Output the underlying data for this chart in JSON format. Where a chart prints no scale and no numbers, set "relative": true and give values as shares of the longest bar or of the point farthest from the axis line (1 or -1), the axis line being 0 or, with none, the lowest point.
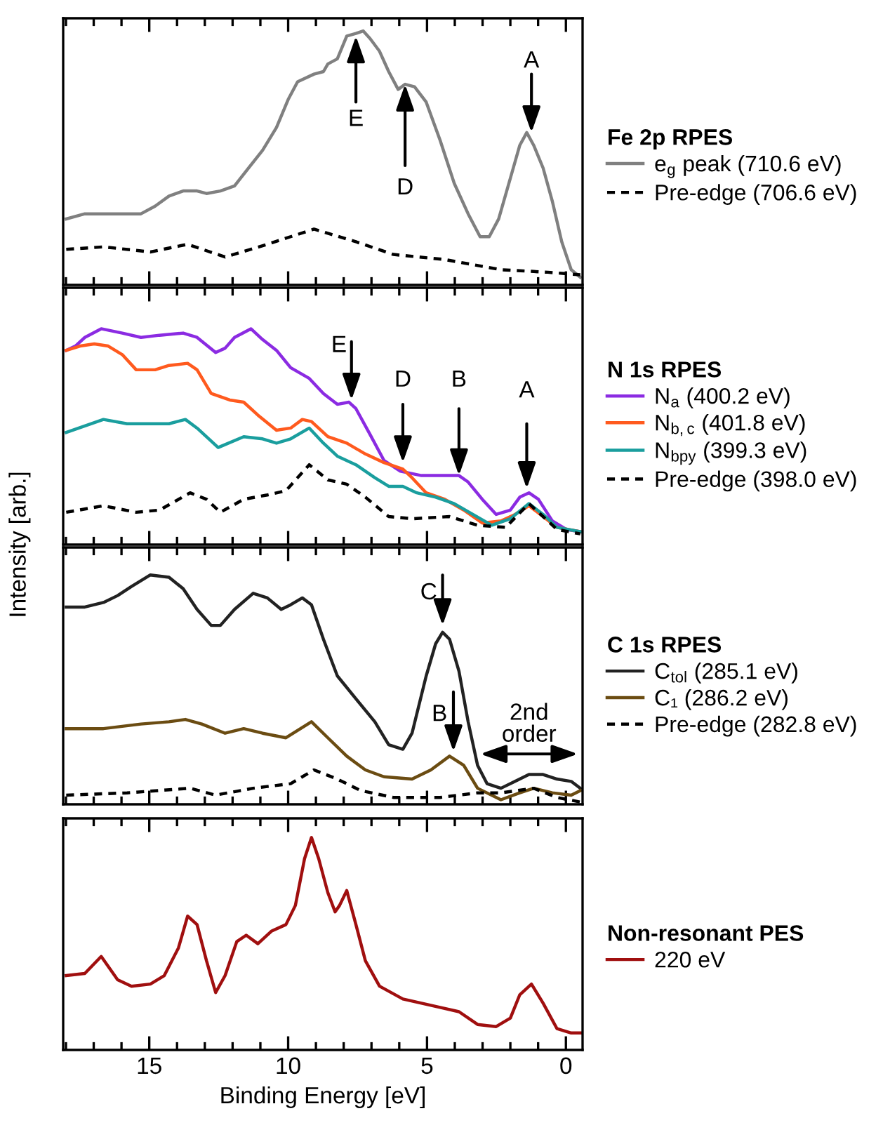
{
  "chart_data": [
    {
      "type": "line",
      "relative": true,
      "xlim": [
        18.1,
        -0.6
      ],
      "tick_labels": false,
      "legend": "right",
      "legend_title": "Fe 2p RPES",
      "grid": false,
      "marker": "none",
      "xticks": [
        {
          "value": 18,
          "label": null
        },
        {
          "value": 17,
          "label": null
        },
        {
          "value": 16,
          "label": null
        },
        {
          "value": 15,
          "label": null
        },
        {
          "value": 14,
          "label": null
        },
        {
          "value": 13,
          "label": null
        },
        {
          "value": 12,
          "label": null
        },
        {
          "value": 11,
          "label": null
        },
        {
          "value": 10,
          "label": null
        },
        {
          "value": 9,
          "label": null
        },
        {
          "value": 8,
          "label": null
        },
        {
          "value": 7,
          "label": null
        },
        {
          "value": 6,
          "label": null
        },
        {
          "value": 5,
          "label": null
        },
        {
          "value": 4,
          "label": null
        },
        {
          "value": 3,
          "label": null
        },
        {
          "value": 2,
          "label": null
        },
        {
          "value": 1,
          "label": null
        },
        {
          "value": 0,
          "label": null
        }
      ],
      "series": [
        {
          "name": "e$_{g}$ peak (710.6 eV)",
          "color": "#808080",
          "line_style": "solid",
          "x": [
            17.99,
            17.32,
            16.65,
            15.97,
            15.3,
            14.79,
            14.29,
            13.78,
            13.28,
            12.94,
            12.44,
            11.93,
            11.43,
            10.92,
            10.42,
            10.0,
            9.66,
            9.07,
            8.73,
            8.57,
            8.23,
            7.89,
            7.56,
            7.3,
            7.05,
            6.71,
            6.38,
            6.04,
            5.79,
            5.45,
            5.03,
            4.53,
            4.02,
            3.52,
            3.09,
            2.76,
            2.42,
            2.0,
            1.66,
            1.41,
            1.16,
            0.82,
            0.49,
            0.15,
            -0.19,
            -0.52
          ],
          "values": [
            0.26,
            0.28,
            0.28,
            0.28,
            0.28,
            0.31,
            0.35,
            0.37,
            0.37,
            0.36,
            0.37,
            0.39,
            0.46,
            0.53,
            0.62,
            0.73,
            0.8,
            0.83,
            0.84,
            0.87,
            0.89,
            0.98,
            0.99,
            1.0,
            0.97,
            0.92,
            0.84,
            0.77,
            0.79,
            0.78,
            0.72,
            0.57,
            0.4,
            0.28,
            0.19,
            0.19,
            0.26,
            0.42,
            0.55,
            0.6,
            0.55,
            0.46,
            0.33,
            0.17,
            0.06,
            0.03
          ]
        },
        {
          "name": "Pre-edge (706.6 eV)",
          "color": "#000000",
          "line_style": "dashed",
          "x": [
            17.99,
            16.65,
            14.96,
            13.62,
            12.27,
            10.75,
            9.07,
            7.56,
            6.21,
            4.36,
            2.34,
            0.65,
            -0.52
          ],
          "values": [
            0.14,
            0.15,
            0.13,
            0.16,
            0.11,
            0.16,
            0.22,
            0.17,
            0.12,
            0.1,
            0.06,
            0.05,
            0.04
          ]
        }
      ],
      "annotations": [
        {
          "text": "E",
          "x": 7.56,
          "y": 0.98
        },
        {
          "text": "D",
          "x": 5.79,
          "y": 0.79
        },
        {
          "text": "A",
          "x": 1.24,
          "y": 0.6
        }
      ]
    },
    {
      "type": "line",
      "relative": true,
      "xlim": [
        18.1,
        -0.6
      ],
      "tick_labels": false,
      "legend": "right",
      "legend_title": "N 1s RPES",
      "grid": false,
      "marker": "none",
      "ylabel": "Intensity [arb.]",
      "xticks": [
        {
          "value": 18,
          "label": null
        },
        {
          "value": 17,
          "label": null
        },
        {
          "value": 16,
          "label": null
        },
        {
          "value": 15,
          "label": null
        },
        {
          "value": 14,
          "label": null
        },
        {
          "value": 13,
          "label": null
        },
        {
          "value": 12,
          "label": null
        },
        {
          "value": 11,
          "label": null
        },
        {
          "value": 10,
          "label": null
        },
        {
          "value": 9,
          "label": null
        },
        {
          "value": 8,
          "label": null
        },
        {
          "value": 7,
          "label": null
        },
        {
          "value": 6,
          "label": null
        },
        {
          "value": 5,
          "label": null
        },
        {
          "value": 4,
          "label": null
        },
        {
          "value": 3,
          "label": null
        },
        {
          "value": 2,
          "label": null
        },
        {
          "value": 1,
          "label": null
        },
        {
          "value": 0,
          "label": null
        }
      ],
      "series": [
        {
          "name": "N$_{a}$ (400.2 eV)",
          "color": "#8b2be2",
          "line_style": "solid",
          "x": [
            17.99,
            17.66,
            17.32,
            16.73,
            15.97,
            15.3,
            14.63,
            13.78,
            13.28,
            12.61,
            12.27,
            11.93,
            11.34,
            10.92,
            10.42,
            9.91,
            9.24,
            8.73,
            8.23,
            7.81,
            7.56,
            7.05,
            6.55,
            5.96,
            5.2,
            4.36,
            3.85,
            3.52,
            3.01,
            2.51,
            2.0,
            1.66,
            1.33,
            0.99,
            0.49,
            -0.02,
            -0.52
          ],
          "values": [
            0.9,
            0.92,
            0.96,
            1.0,
            0.98,
            0.96,
            0.97,
            0.98,
            0.96,
            0.89,
            0.91,
            0.96,
            1.0,
            0.95,
            0.9,
            0.82,
            0.77,
            0.7,
            0.65,
            0.66,
            0.63,
            0.51,
            0.39,
            0.34,
            0.32,
            0.32,
            0.32,
            0.29,
            0.21,
            0.14,
            0.16,
            0.22,
            0.24,
            0.21,
            0.11,
            0.07,
            0.06
          ]
        },
        {
          "name": "N$_{b,c}$ (401.8 eV)",
          "color": "#ff5a1e",
          "line_style": "solid",
          "x": [
            17.99,
            17.49,
            16.98,
            16.48,
            15.97,
            15.47,
            14.79,
            14.29,
            13.62,
            13.28,
            12.77,
            12.1,
            11.6,
            11.09,
            10.42,
            9.91,
            9.49,
            9.16,
            8.57,
            7.89,
            7.22,
            6.55,
            5.87,
            5.54,
            5.03,
            4.36,
            3.68,
            3.01,
            2.34,
            1.83,
            1.33,
            0.82,
            0.32,
            -0.52
          ],
          "values": [
            0.9,
            0.92,
            0.93,
            0.92,
            0.88,
            0.81,
            0.81,
            0.83,
            0.84,
            0.81,
            0.7,
            0.67,
            0.66,
            0.6,
            0.53,
            0.54,
            0.58,
            0.57,
            0.5,
            0.47,
            0.42,
            0.38,
            0.35,
            0.31,
            0.24,
            0.21,
            0.16,
            0.1,
            0.11,
            0.14,
            0.18,
            0.13,
            0.08,
            0.06
          ]
        },
        {
          "name": "N$_{bpy}$ (399.3 eV)",
          "color": "#1a9e9e",
          "line_style": "solid",
          "x": [
            17.99,
            17.32,
            16.65,
            15.8,
            14.96,
            14.29,
            13.7,
            13.28,
            12.52,
            11.6,
            10.92,
            10.42,
            9.91,
            9.24,
            8.73,
            8.23,
            7.56,
            6.88,
            6.38,
            5.87,
            5.37,
            4.69,
            4.02,
            3.35,
            2.67,
            2.0,
            1.33,
            0.82,
            0.32,
            -0.52
          ],
          "values": [
            0.52,
            0.55,
            0.58,
            0.56,
            0.56,
            0.56,
            0.58,
            0.54,
            0.45,
            0.5,
            0.49,
            0.47,
            0.49,
            0.54,
            0.47,
            0.41,
            0.37,
            0.31,
            0.27,
            0.27,
            0.24,
            0.22,
            0.19,
            0.14,
            0.09,
            0.12,
            0.19,
            0.14,
            0.08,
            0.06
          ]
        },
        {
          "name": "Pre-edge (398.0 eV)",
          "color": "#000000",
          "line_style": "dashed",
          "x": [
            17.99,
            16.65,
            15.47,
            14.63,
            13.53,
            12.94,
            12.44,
            11.6,
            10.75,
            10.08,
            9.24,
            8.57,
            7.89,
            7.22,
            6.38,
            5.54,
            4.19,
            3.18,
            2.17,
            1.33,
            0.82,
            0.32,
            -0.52
          ],
          "values": [
            0.15,
            0.18,
            0.15,
            0.16,
            0.24,
            0.21,
            0.15,
            0.21,
            0.23,
            0.25,
            0.37,
            0.3,
            0.28,
            0.22,
            0.13,
            0.12,
            0.13,
            0.09,
            0.08,
            0.19,
            0.13,
            0.07,
            0.05
          ]
        }
      ],
      "annotations": [
        {
          "text": "E",
          "x": 7.72,
          "y": 0.67
        },
        {
          "text": "D",
          "x": 5.87,
          "y": 0.38
        },
        {
          "text": "B",
          "x": 3.85,
          "y": 0.32
        },
        {
          "text": "A",
          "x": 1.41,
          "y": 0.26
        }
      ]
    },
    {
      "type": "line",
      "relative": true,
      "xlim": [
        18.1,
        -0.6
      ],
      "tick_labels": false,
      "legend": "right",
      "legend_title": "C 1s RPES",
      "grid": false,
      "marker": "none",
      "xticks": [
        {
          "value": 18,
          "label": null
        },
        {
          "value": 17,
          "label": null
        },
        {
          "value": 16,
          "label": null
        },
        {
          "value": 15,
          "label": null
        },
        {
          "value": 14,
          "label": null
        },
        {
          "value": 13,
          "label": null
        },
        {
          "value": 12,
          "label": null
        },
        {
          "value": 11,
          "label": null
        },
        {
          "value": 10,
          "label": null
        },
        {
          "value": 9,
          "label": null
        },
        {
          "value": 8,
          "label": null
        },
        {
          "value": 7,
          "label": null
        },
        {
          "value": 6,
          "label": null
        },
        {
          "value": 5,
          "label": null
        },
        {
          "value": 4,
          "label": null
        },
        {
          "value": 3,
          "label": null
        },
        {
          "value": 2,
          "label": null
        },
        {
          "value": 1,
          "label": null
        },
        {
          "value": 0,
          "label": null
        }
      ],
      "series": [
        {
          "name": "C$_{tol}$ (285.1 eV)",
          "color": "#222222",
          "line_style": "solid",
          "x": [
            17.99,
            17.32,
            16.65,
            16.14,
            15.64,
            14.96,
            14.29,
            13.78,
            13.28,
            12.77,
            12.44,
            11.93,
            11.26,
            10.75,
            10.25,
            9.91,
            9.49,
            9.16,
            8.73,
            8.23,
            7.56,
            6.88,
            6.38,
            5.87,
            5.54,
            5.03,
            4.69,
            4.44,
            4.19,
            3.85,
            3.52,
            3.18,
            2.84,
            2.34,
            1.83,
            1.33,
            0.82,
            0.32,
            -0.19,
            -0.52
          ],
          "values": [
            0.86,
            0.86,
            0.88,
            0.91,
            0.95,
            1.0,
            0.99,
            0.94,
            0.85,
            0.78,
            0.78,
            0.85,
            0.92,
            0.9,
            0.85,
            0.87,
            0.9,
            0.87,
            0.72,
            0.56,
            0.46,
            0.36,
            0.26,
            0.24,
            0.31,
            0.56,
            0.7,
            0.75,
            0.72,
            0.58,
            0.36,
            0.17,
            0.09,
            0.07,
            0.1,
            0.13,
            0.13,
            0.11,
            0.1,
            0.07
          ]
        },
        {
          "name": "C₁ (286.2 eV)",
          "color": "#6b4c12",
          "line_style": "solid",
          "x": [
            17.99,
            16.65,
            15.3,
            14.29,
            13.7,
            13.11,
            12.27,
            11.6,
            10.92,
            10.08,
            9.16,
            8.57,
            7.89,
            7.22,
            6.55,
            5.54,
            4.86,
            4.19,
            3.68,
            3.18,
            2.34,
            1.66,
            1.16,
            0.49,
            -0.19,
            -0.52
          ],
          "values": [
            0.33,
            0.33,
            0.35,
            0.36,
            0.37,
            0.35,
            0.31,
            0.33,
            0.31,
            0.29,
            0.36,
            0.29,
            0.21,
            0.15,
            0.12,
            0.11,
            0.15,
            0.21,
            0.17,
            0.07,
            0.02,
            0.05,
            0.07,
            0.05,
            0.04,
            0.06
          ]
        },
        {
          "name": "Pre-edge (282.8 eV)",
          "color": "#000000",
          "line_style": "dashed",
          "x": [
            17.99,
            15.8,
            13.53,
            12.61,
            11.26,
            9.91,
            9.07,
            8.23,
            7.39,
            6.21,
            4.53,
            3.18,
            2.34,
            1.16,
            0.32,
            -0.52
          ],
          "values": [
            0.04,
            0.05,
            0.07,
            0.04,
            0.07,
            0.09,
            0.15,
            0.11,
            0.06,
            0.03,
            0.03,
            0.05,
            0.05,
            0.07,
            0.03,
            0.01
          ]
        }
      ],
      "annotations": [
        {
          "text": "C",
          "x": 4.44,
          "y": 0.78
        },
        {
          "text": "B",
          "x": 4.05,
          "y": 0.23
        },
        "2nd\norder"
      ]
    },
    {
      "type": "line",
      "relative": true,
      "xlim": [
        18.1,
        -0.6
      ],
      "tick_labels": "x",
      "legend": "right",
      "legend_title": "Non-resonant PES",
      "grid": false,
      "marker": "none",
      "xlabel": "Binding Energy [eV]",
      "xticks": [
        {
          "value": 18,
          "label": null
        },
        {
          "value": 17,
          "label": null
        },
        {
          "value": 16,
          "label": null
        },
        15,
        {
          "value": 14,
          "label": null
        },
        {
          "value": 13,
          "label": null
        },
        {
          "value": 12,
          "label": null
        },
        {
          "value": 11,
          "label": null
        },
        10,
        {
          "value": 9,
          "label": null
        },
        {
          "value": 8,
          "label": null
        },
        {
          "value": 7,
          "label": null
        },
        {
          "value": 6,
          "label": null
        },
        5,
        {
          "value": 4,
          "label": null
        },
        {
          "value": 3,
          "label": null
        },
        {
          "value": 2,
          "label": null
        },
        {
          "value": 1,
          "label": null
        },
        0
      ],
      "series": [
        {
          "name": "220 eV",
          "color": "#a00f0f",
          "line_style": "solid",
          "x": [
            17.99,
            17.32,
            16.73,
            16.14,
            15.64,
            14.96,
            14.46,
            13.95,
            13.62,
            13.28,
            12.94,
            12.61,
            12.27,
            11.85,
            11.51,
            11.09,
            10.59,
            10.08,
            9.74,
            9.41,
            9.16,
            8.9,
            8.57,
            8.31,
            8.15,
            7.89,
            7.56,
            7.22,
            6.71,
            5.87,
            5.2,
            4.53,
            3.85,
            3.18,
            2.51,
            2.0,
            1.66,
            1.24,
            0.82,
            0.32,
            -0.19,
            -0.52
          ],
          "values": [
            0.35,
            0.36,
            0.44,
            0.33,
            0.3,
            0.31,
            0.35,
            0.48,
            0.63,
            0.59,
            0.42,
            0.27,
            0.35,
            0.51,
            0.54,
            0.5,
            0.56,
            0.59,
            0.68,
            0.9,
            1.0,
            0.9,
            0.74,
            0.65,
            0.68,
            0.75,
            0.59,
            0.42,
            0.3,
            0.24,
            0.22,
            0.2,
            0.18,
            0.12,
            0.11,
            0.15,
            0.26,
            0.31,
            0.22,
            0.1,
            0.08,
            0.08
          ]
        }
      ]
    }
  ]
}
